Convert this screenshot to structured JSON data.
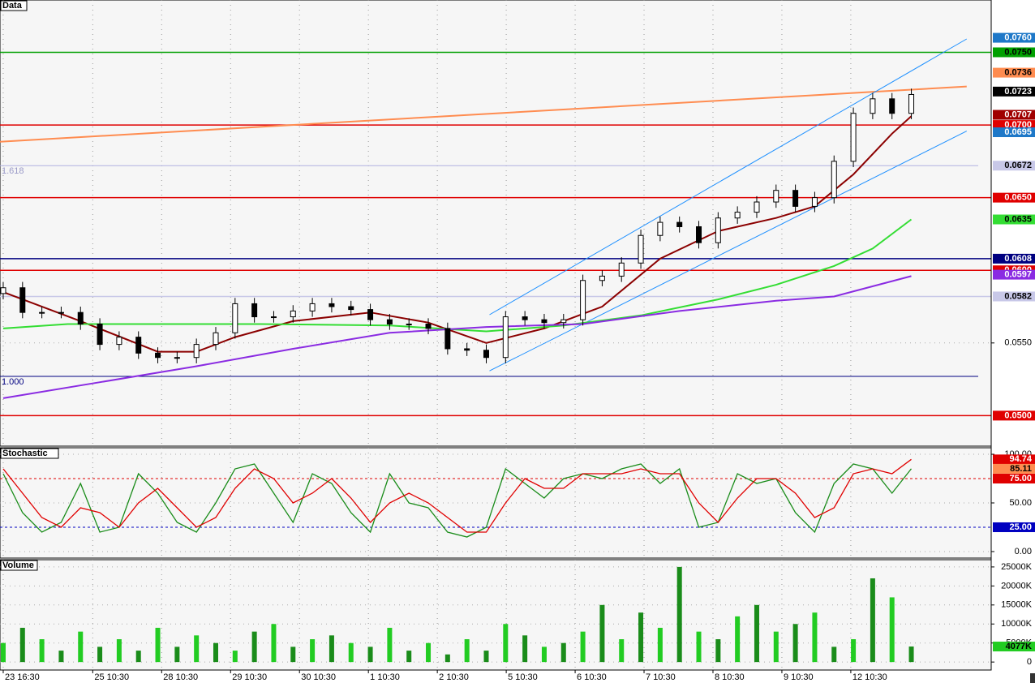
{
  "chart_data": [
    {
      "type": "candlestick",
      "title": "Data",
      "xlim": [
        -0.5,
        153.4
      ],
      "ylim": [
        0.0479,
        0.0786
      ],
      "x": [
        0,
        3,
        6,
        9,
        12,
        15,
        18,
        21,
        24,
        27,
        30,
        33,
        36,
        39,
        42,
        45,
        48,
        51,
        54,
        57,
        60,
        63,
        66,
        69,
        72,
        75,
        78,
        81,
        84,
        87,
        90,
        93,
        96,
        99,
        102,
        105,
        108,
        111,
        114,
        117,
        120,
        123,
        126,
        129,
        132,
        135,
        138,
        141
      ],
      "open": [
        0.0584,
        0.0588,
        0.0571,
        0.0571,
        0.0571,
        0.0563,
        0.0549,
        0.0554,
        0.0543,
        0.054,
        0.054,
        0.0549,
        0.0557,
        0.0577,
        0.0568,
        0.0568,
        0.0572,
        0.0577,
        0.0575,
        0.0573,
        0.0566,
        0.0563,
        0.0563,
        0.056,
        0.0546,
        0.0545,
        0.054,
        0.0568,
        0.0566,
        0.0564,
        0.0566,
        0.0593,
        0.0596,
        0.0605,
        0.0624,
        0.0633,
        0.063,
        0.0619,
        0.0636,
        0.064,
        0.0647,
        0.0655,
        0.0644,
        0.065,
        0.0675,
        0.0708,
        0.0718,
        0.0708
      ],
      "high": [
        0.0592,
        0.0592,
        0.0575,
        0.0575,
        0.0575,
        0.0567,
        0.0558,
        0.0558,
        0.0547,
        0.0544,
        0.0553,
        0.0561,
        0.0581,
        0.0581,
        0.0572,
        0.0576,
        0.0581,
        0.0581,
        0.0579,
        0.0577,
        0.057,
        0.0567,
        0.0567,
        0.0564,
        0.055,
        0.0549,
        0.0572,
        0.0572,
        0.057,
        0.057,
        0.0597,
        0.06,
        0.0609,
        0.0628,
        0.0637,
        0.0637,
        0.0634,
        0.064,
        0.0644,
        0.0651,
        0.0659,
        0.0659,
        0.0654,
        0.0679,
        0.0712,
        0.0722,
        0.0722,
        0.0725
      ],
      "low": [
        0.058,
        0.0567,
        0.0567,
        0.0567,
        0.0559,
        0.0545,
        0.0545,
        0.0539,
        0.0536,
        0.0536,
        0.0536,
        0.0545,
        0.0553,
        0.0564,
        0.0564,
        0.0564,
        0.0568,
        0.0571,
        0.0569,
        0.0562,
        0.0559,
        0.0559,
        0.0556,
        0.0542,
        0.0541,
        0.0536,
        0.0536,
        0.0562,
        0.056,
        0.056,
        0.0562,
        0.0589,
        0.0592,
        0.0601,
        0.062,
        0.0626,
        0.0615,
        0.0615,
        0.0632,
        0.0636,
        0.0643,
        0.064,
        0.064,
        0.0646,
        0.0671,
        0.0704,
        0.0704,
        0.0704
      ],
      "close": [
        0.0588,
        0.0571,
        0.0571,
        0.0571,
        0.0563,
        0.0549,
        0.0554,
        0.0543,
        0.054,
        0.054,
        0.0549,
        0.0557,
        0.0577,
        0.0568,
        0.0568,
        0.0572,
        0.0577,
        0.0575,
        0.0573,
        0.0566,
        0.0563,
        0.0563,
        0.056,
        0.0546,
        0.0545,
        0.054,
        0.0568,
        0.0566,
        0.0564,
        0.0566,
        0.0593,
        0.0596,
        0.0605,
        0.0624,
        0.0633,
        0.063,
        0.0619,
        0.0636,
        0.064,
        0.0647,
        0.0655,
        0.0644,
        0.065,
        0.0675,
        0.0708,
        0.0718,
        0.0708,
        0.0721
      ],
      "lines": [
        {
          "color": "#8b0000",
          "x": [
            0,
            12,
            24,
            30,
            36,
            45,
            57,
            66,
            75,
            84,
            93,
            102,
            111,
            120,
            126,
            132,
            138,
            141
          ],
          "values": [
            0.0585,
            0.0565,
            0.0544,
            0.0544,
            0.0554,
            0.0565,
            0.0571,
            0.0564,
            0.055,
            0.056,
            0.0575,
            0.0608,
            0.0627,
            0.0636,
            0.0644,
            0.0666,
            0.0694,
            0.0706
          ]
        },
        {
          "color": "#33dd33",
          "x": [
            0,
            10,
            40,
            60,
            75,
            87,
            99,
            111,
            120,
            129,
            135,
            141
          ],
          "values": [
            0.056,
            0.0563,
            0.0563,
            0.0562,
            0.0558,
            0.0562,
            0.0569,
            0.058,
            0.059,
            0.0603,
            0.0615,
            0.0635
          ]
        },
        {
          "color": "#8a2be2",
          "x": [
            0,
            15,
            30,
            45,
            60,
            75,
            90,
            105,
            120,
            129,
            141
          ],
          "values": [
            0.0512,
            0.0523,
            0.0534,
            0.0546,
            0.0557,
            0.0561,
            0.0563,
            0.0572,
            0.0579,
            0.0582,
            0.0596
          ]
        }
      ],
      "trendlines": [
        {
          "color": "#ff8c50",
          "x": [
            -0.5,
            149.6
          ],
          "values": [
            0.06885,
            0.07265
          ]
        },
        {
          "color": "#1e90ff",
          "x": [
            75.5,
            149.6
          ],
          "values": [
            0.05694,
            0.07592
          ]
        },
        {
          "color": "#1e90ff",
          "x": [
            75.5,
            149.6
          ],
          "values": [
            0.05308,
            0.06958
          ]
        }
      ],
      "fib_levels": [
        {
          "label": "1.618",
          "value": 0.0672,
          "color": "#b0b0e0"
        },
        {
          "label": "1.000",
          "value": 0.0527,
          "color": "#000080"
        }
      ],
      "yticks": [
        {
          "value": 0.055,
          "label": "0.0550"
        }
      ],
      "price_tags": [
        {
          "value": 0.076,
          "label": "0.0760",
          "color": "#1e78c8",
          "line": false
        },
        {
          "value": 0.075,
          "label": "0.0750",
          "color": "#00a000",
          "line": true
        },
        {
          "value": 0.0736,
          "label": "0.0736",
          "color": "#ff8c50",
          "line": false
        },
        {
          "value": 0.0723,
          "label": "0.0723",
          "color": "#000000",
          "line": false
        },
        {
          "value": 0.0707,
          "label": "0.0707",
          "color": "#a00000",
          "line": false
        },
        {
          "value": 0.07,
          "label": "0.0700",
          "color": "#e00000",
          "line": true
        },
        {
          "value": 0.0695,
          "label": "0.0695",
          "color": "#1e78c8",
          "line": false
        },
        {
          "value": 0.0672,
          "label": "0.0672",
          "color": "#c8c8e8",
          "line": false
        },
        {
          "value": 0.065,
          "label": "0.0650",
          "color": "#e00000",
          "line": true
        },
        {
          "value": 0.0635,
          "label": "0.0635",
          "color": "#33dd33",
          "line": false
        },
        {
          "value": 0.0608,
          "label": "0.0608",
          "color": "#000080",
          "line": true
        },
        {
          "value": 0.06,
          "label": "0.0600",
          "color": "#e00000",
          "line": true
        },
        {
          "value": 0.0597,
          "label": "0.0597",
          "color": "#8a2be2",
          "line": false
        },
        {
          "value": 0.0582,
          "label": "0.0582",
          "color": "#c8c8e8",
          "line": true
        },
        {
          "value": 0.05,
          "label": "0.0500",
          "color": "#e00000",
          "line": true
        }
      ]
    },
    {
      "type": "line",
      "title": "Stochastic",
      "xlim": [
        -0.5,
        153.4
      ],
      "ylim": [
        -6.7,
        106.7
      ],
      "x": [
        0,
        3,
        6,
        9,
        12,
        15,
        18,
        21,
        24,
        27,
        30,
        33,
        36,
        39,
        42,
        45,
        48,
        51,
        54,
        57,
        60,
        63,
        66,
        69,
        72,
        75,
        78,
        81,
        84,
        87,
        90,
        93,
        96,
        99,
        102,
        105,
        108,
        111,
        114,
        117,
        120,
        123,
        126,
        129,
        132,
        135,
        138,
        141
      ],
      "series": [
        {
          "color": "#1a8c1a",
          "values": [
            80,
            40,
            20,
            30,
            70,
            20,
            25,
            80,
            60,
            30,
            20,
            50,
            85,
            90,
            60,
            30,
            80,
            70,
            40,
            20,
            80,
            50,
            45,
            20,
            15,
            25,
            85,
            70,
            55,
            75,
            80,
            75,
            85,
            90,
            70,
            85,
            25,
            30,
            80,
            70,
            75,
            40,
            20,
            70,
            90,
            85,
            60,
            85.11
          ]
        },
        {
          "color": "#e00000",
          "values": [
            85,
            60,
            35,
            25,
            45,
            40,
            25,
            50,
            65,
            45,
            25,
            35,
            65,
            85,
            75,
            50,
            60,
            75,
            55,
            30,
            50,
            60,
            50,
            35,
            20,
            20,
            50,
            75,
            65,
            65,
            80,
            80,
            80,
            85,
            80,
            80,
            50,
            30,
            55,
            75,
            75,
            60,
            35,
            45,
            80,
            85,
            80,
            94.74
          ]
        }
      ],
      "yticks": [
        {
          "value": 100,
          "label": "100.00"
        },
        {
          "value": 50,
          "label": "50.00"
        },
        {
          "value": 0,
          "label": "0.00"
        }
      ],
      "price_tags": [
        {
          "value": 94.74,
          "label": "94.74",
          "color": "#e00000",
          "line": false
        },
        {
          "value": 85.11,
          "label": "85.11",
          "color": "#ff8c50",
          "line": false
        },
        {
          "value": 75,
          "label": "75.00",
          "color": "#e00000",
          "line": true
        },
        {
          "value": 25,
          "label": "25.00",
          "color": "#0000c0",
          "line": true
        }
      ]
    },
    {
      "type": "bar",
      "title": "Volume",
      "color": "#22cc22",
      "xlim": [
        -0.5,
        153.4
      ],
      "ylim": [
        -2100,
        26900
      ],
      "x": [
        0,
        3,
        6,
        9,
        12,
        15,
        18,
        21,
        24,
        27,
        30,
        33,
        36,
        39,
        42,
        45,
        48,
        51,
        54,
        57,
        60,
        63,
        66,
        69,
        72,
        75,
        78,
        81,
        84,
        87,
        90,
        93,
        96,
        99,
        102,
        105,
        108,
        111,
        114,
        117,
        120,
        123,
        126,
        129,
        132,
        135,
        138,
        141
      ],
      "values": [
        5000,
        9000,
        6000,
        3000,
        8000,
        4000,
        6000,
        3000,
        9000,
        4000,
        7000,
        5000,
        3000,
        8000,
        10000,
        4000,
        6000,
        7000,
        5000,
        4000,
        9000,
        3000,
        5000,
        2000,
        6000,
        3000,
        10000,
        7000,
        4000,
        5000,
        8000,
        15000,
        6000,
        13000,
        9000,
        25000,
        8000,
        6000,
        12000,
        15000,
        8000,
        10000,
        13000,
        4000,
        6000,
        22000,
        17000,
        4077
      ],
      "yticks": [
        {
          "value": 25000,
          "label": "25000K"
        },
        {
          "value": 20000,
          "label": "20000K"
        },
        {
          "value": 15000,
          "label": "15000K"
        },
        {
          "value": 10000,
          "label": "10000K"
        },
        {
          "value": 5000,
          "label": "5000K"
        },
        0
      ],
      "price_tags": [
        {
          "value": 4077,
          "label": "4077K",
          "color": "#22cc22",
          "line": false
        }
      ],
      "xticks": [
        {
          "value": 0,
          "label": "23 16:30"
        },
        {
          "value": 13.9,
          "label": "25 10:30"
        },
        {
          "value": 24.6,
          "label": "28 10:30"
        },
        {
          "value": 35.3,
          "label": "29 10:30"
        },
        {
          "value": 46,
          "label": "30 10:30"
        },
        {
          "value": 56.7,
          "label": "1 10:30"
        },
        {
          "value": 67.4,
          "label": "2 10:30"
        },
        {
          "value": 78.1,
          "label": "5 10:30"
        },
        {
          "value": 88.8,
          "label": "6 10:30"
        },
        {
          "value": 99.5,
          "label": "7 10:30"
        },
        {
          "value": 110.2,
          "label": "8 10:30"
        },
        {
          "value": 120.9,
          "label": "9 10:30"
        },
        {
          "value": 131.6,
          "label": "12 10:30"
        }
      ]
    }
  ]
}
